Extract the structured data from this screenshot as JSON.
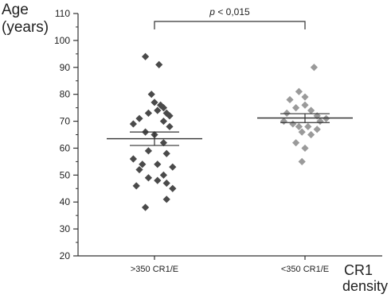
{
  "chart_data": {
    "type": "scatter",
    "ylabel": [
      "Age",
      "(years)"
    ],
    "xlabel": [
      "CR1",
      "density"
    ],
    "ylim": [
      20,
      110
    ],
    "yticks": [
      20,
      30,
      40,
      50,
      60,
      70,
      80,
      90,
      100,
      110
    ],
    "categories": [
      ">350 CR1/E",
      "<350 CR1/E"
    ],
    "grid": false,
    "legend": "none",
    "series": [
      {
        "category": ">350 CR1/E",
        "color": "#4a4a4a",
        "mean": 63.5,
        "sem_low": 61,
        "sem_high": 66,
        "points": [
          {
            "dx": -0.06,
            "y": 94
          },
          {
            "dx": 0.03,
            "y": 91
          },
          {
            "dx": -0.02,
            "y": 80
          },
          {
            "dx": 0.0,
            "y": 77
          },
          {
            "dx": 0.04,
            "y": 76
          },
          {
            "dx": 0.06,
            "y": 75
          },
          {
            "dx": 0.02,
            "y": 74
          },
          {
            "dx": 0.08,
            "y": 73
          },
          {
            "dx": -0.04,
            "y": 73
          },
          {
            "dx": 0.1,
            "y": 72
          },
          {
            "dx": -0.1,
            "y": 71
          },
          {
            "dx": -0.14,
            "y": 69
          },
          {
            "dx": 0.06,
            "y": 70
          },
          {
            "dx": 0.1,
            "y": 68
          },
          {
            "dx": -0.06,
            "y": 66
          },
          {
            "dx": 0.0,
            "y": 65
          },
          {
            "dx": 0.06,
            "y": 62
          },
          {
            "dx": -0.04,
            "y": 59
          },
          {
            "dx": 0.08,
            "y": 58
          },
          {
            "dx": -0.14,
            "y": 56
          },
          {
            "dx": -0.08,
            "y": 54
          },
          {
            "dx": 0.02,
            "y": 54
          },
          {
            "dx": 0.12,
            "y": 53
          },
          {
            "dx": -0.1,
            "y": 52
          },
          {
            "dx": 0.06,
            "y": 50
          },
          {
            "dx": -0.04,
            "y": 49
          },
          {
            "dx": 0.02,
            "y": 48
          },
          {
            "dx": 0.08,
            "y": 47
          },
          {
            "dx": -0.12,
            "y": 46
          },
          {
            "dx": 0.12,
            "y": 45
          },
          {
            "dx": 0.08,
            "y": 41
          },
          {
            "dx": -0.06,
            "y": 38
          }
        ]
      },
      {
        "category": "<350 CR1/E",
        "color": "#9a9a9a",
        "mean": 71.2,
        "sem_low": 69.5,
        "sem_high": 72.8,
        "points": [
          {
            "dx": 0.06,
            "y": 90
          },
          {
            "dx": -0.04,
            "y": 81
          },
          {
            "dx": 0.0,
            "y": 79
          },
          {
            "dx": -0.1,
            "y": 78
          },
          {
            "dx": 0.0,
            "y": 76
          },
          {
            "dx": -0.06,
            "y": 75
          },
          {
            "dx": 0.04,
            "y": 74
          },
          {
            "dx": -0.12,
            "y": 73
          },
          {
            "dx": 0.08,
            "y": 72
          },
          {
            "dx": 0.14,
            "y": 71
          },
          {
            "dx": -0.14,
            "y": 70
          },
          {
            "dx": 0.1,
            "y": 70
          },
          {
            "dx": -0.08,
            "y": 69
          },
          {
            "dx": 0.02,
            "y": 68
          },
          {
            "dx": -0.04,
            "y": 68
          },
          {
            "dx": 0.08,
            "y": 67
          },
          {
            "dx": -0.02,
            "y": 66
          },
          {
            "dx": 0.04,
            "y": 65
          },
          {
            "dx": -0.06,
            "y": 62
          },
          {
            "dx": 0.0,
            "y": 60
          },
          {
            "dx": -0.02,
            "y": 55
          }
        ]
      }
    ],
    "annotation": {
      "text_italic": "p",
      "text_rest": " < 0,015",
      "from": ">350 CR1/E",
      "to": "<350 CR1/E"
    }
  }
}
